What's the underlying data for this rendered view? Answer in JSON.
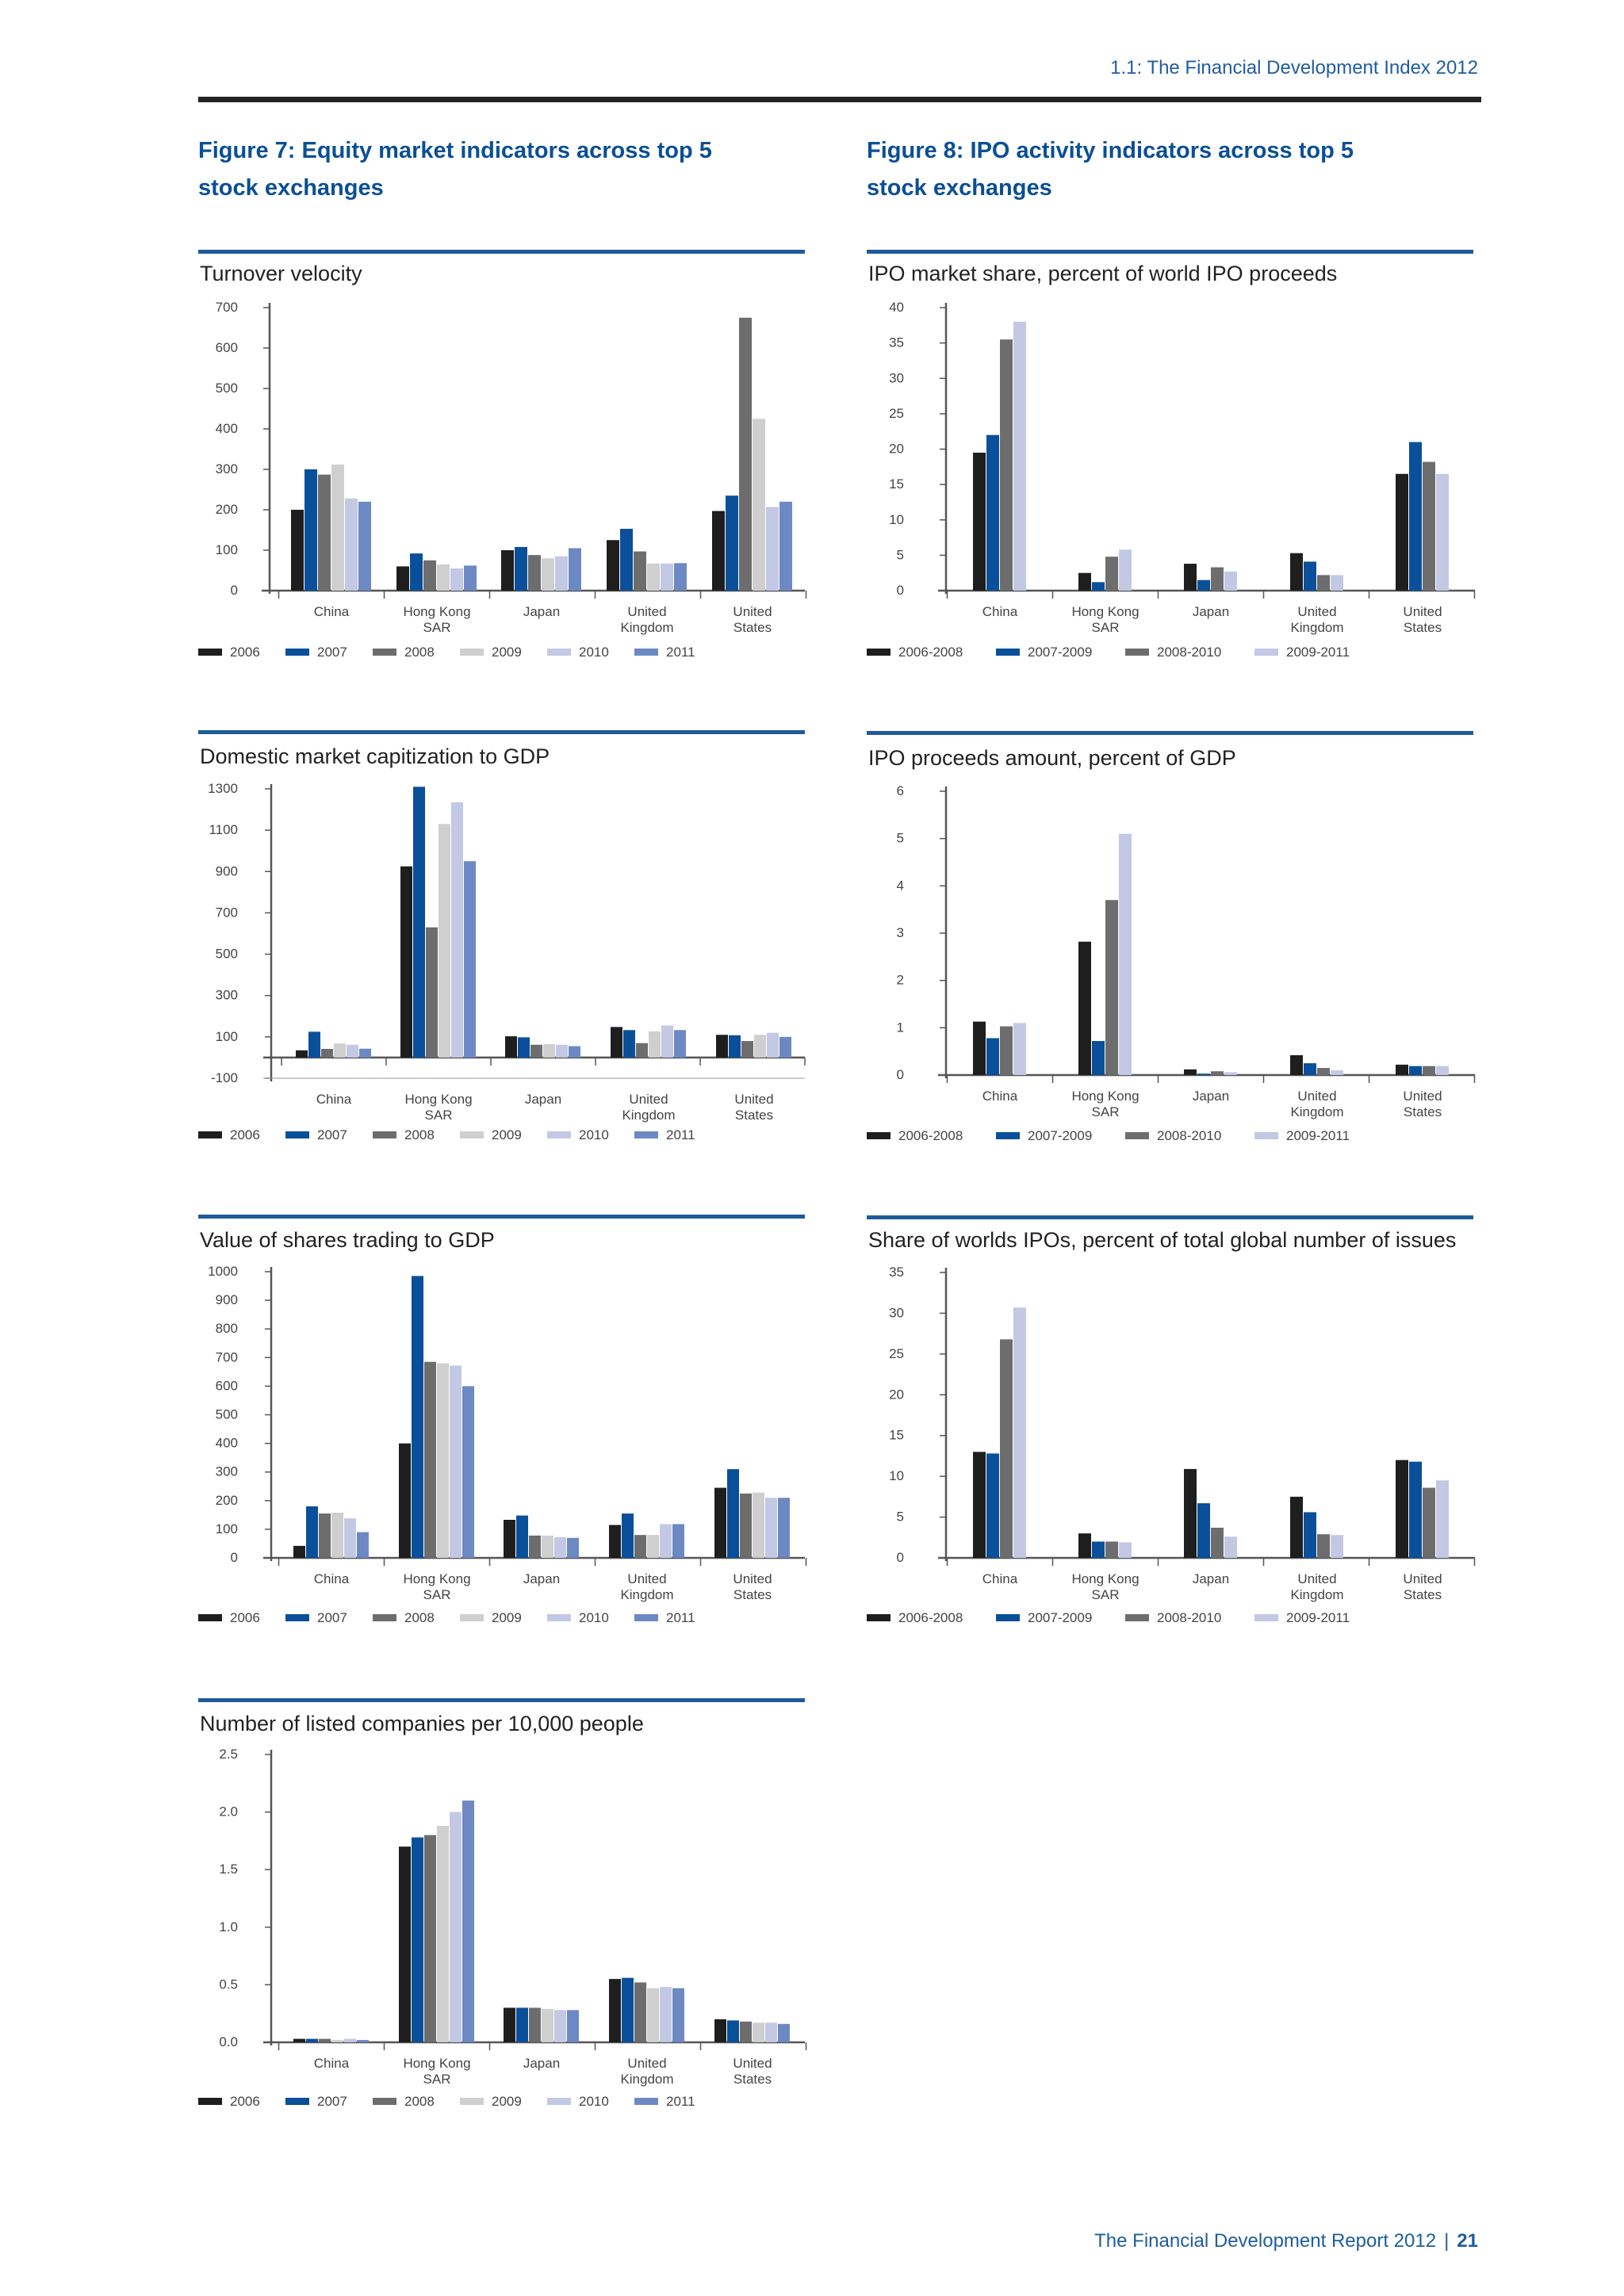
{
  "page": {
    "header": "1.1: The Financial Development Index 2012",
    "footer_report": "The Financial Development Report 2012",
    "footer_sep": "|",
    "page_number": "21"
  },
  "figures": {
    "fig7": {
      "line1": "Figure 7: Equity market indicators across top 5",
      "line2": "stock exchanges"
    },
    "fig8": {
      "line1": "Figure 8: IPO activity indicators across top 5",
      "line2": "stock exchanges"
    }
  },
  "colors": {
    "yearly": [
      "#1e1e1e",
      "#0a4f9a",
      "#6d6d6d",
      "#cfcfcf",
      "#c3c8e4",
      "#6d89c3"
    ],
    "period": [
      "#1e1e1e",
      "#0a4f9a",
      "#6d6d6d",
      "#c3c8e4"
    ],
    "blue_rule": "#1f5a9a",
    "axis": "#555555"
  },
  "chart_data": [
    {
      "id": "turnover",
      "type": "bar",
      "title": "Turnover velocity",
      "categories": [
        [
          "China"
        ],
        [
          "Hong Kong",
          "SAR"
        ],
        [
          "Japan"
        ],
        [
          "United",
          "Kingdom"
        ],
        [
          "United",
          "States"
        ]
      ],
      "yticks": [
        "0",
        "100",
        "200",
        "300",
        "400",
        "500",
        "600",
        "700"
      ],
      "ylim": [
        0,
        700
      ],
      "series": [
        {
          "name": "2006",
          "values": [
            200,
            60,
            100,
            125,
            197
          ]
        },
        {
          "name": "2007",
          "values": [
            300,
            92,
            108,
            153,
            235
          ]
        },
        {
          "name": "2008",
          "values": [
            287,
            75,
            88,
            97,
            675
          ]
        },
        {
          "name": "2009",
          "values": [
            312,
            65,
            80,
            67,
            425
          ]
        },
        {
          "name": "2010",
          "values": [
            228,
            55,
            85,
            67,
            207
          ]
        },
        {
          "name": "2011",
          "values": [
            220,
            62,
            105,
            68,
            220
          ]
        }
      ]
    },
    {
      "id": "ipo_share",
      "type": "bar",
      "title": "IPO market share, percent of world IPO proceeds",
      "categories": [
        [
          "China"
        ],
        [
          "Hong Kong",
          "SAR"
        ],
        [
          "Japan"
        ],
        [
          "United",
          "Kingdom"
        ],
        [
          "United",
          "States"
        ]
      ],
      "yticks": [
        "0",
        "5",
        "10",
        "15",
        "20",
        "25",
        "30",
        "35",
        "40"
      ],
      "ylim": [
        0,
        40
      ],
      "series": [
        {
          "name": "2006-2008",
          "values": [
            19.5,
            2.5,
            3.8,
            5.3,
            16.5
          ]
        },
        {
          "name": "2007-2009",
          "values": [
            22,
            1.2,
            1.5,
            4.1,
            21
          ]
        },
        {
          "name": "2008-2010",
          "values": [
            35.5,
            4.8,
            3.3,
            2.2,
            18.2
          ]
        },
        {
          "name": "2009-2011",
          "values": [
            38,
            5.8,
            2.7,
            2.2,
            16.5
          ]
        }
      ]
    },
    {
      "id": "mktcap",
      "type": "bar",
      "title": "Domestic market capitization to GDP",
      "categories": [
        [
          "China"
        ],
        [
          "Hong Kong",
          "SAR"
        ],
        [
          "Japan"
        ],
        [
          "United",
          "Kingdom"
        ],
        [
          "United",
          "States"
        ]
      ],
      "yticks": [
        "-100",
        "100",
        "300",
        "500",
        "700",
        "900",
        "1100",
        "1300"
      ],
      "ylim": [
        -100,
        1300
      ],
      "series": [
        {
          "name": "2006",
          "values": [
            35,
            925,
            103,
            148,
            110
          ]
        },
        {
          "name": "2007",
          "values": [
            125,
            1310,
            98,
            133,
            108
          ]
        },
        {
          "name": "2008",
          "values": [
            42,
            630,
            62,
            70,
            80
          ]
        },
        {
          "name": "2009",
          "values": [
            68,
            1130,
            65,
            127,
            110
          ]
        },
        {
          "name": "2010",
          "values": [
            62,
            1235,
            62,
            155,
            120
          ]
        },
        {
          "name": "2011",
          "values": [
            43,
            950,
            55,
            133,
            100
          ]
        }
      ]
    },
    {
      "id": "ipo_gdp",
      "type": "bar",
      "title": "IPO proceeds amount, percent of GDP",
      "categories": [
        [
          "China"
        ],
        [
          "Hong Kong",
          "SAR"
        ],
        [
          "Japan"
        ],
        [
          "United",
          "Kingdom"
        ],
        [
          "United",
          "States"
        ]
      ],
      "yticks": [
        "0",
        "1",
        "2",
        "3",
        "4",
        "5",
        "6"
      ],
      "ylim": [
        0,
        6
      ],
      "series": [
        {
          "name": "2006-2008",
          "values": [
            1.13,
            2.82,
            0.12,
            0.42,
            0.22
          ]
        },
        {
          "name": "2007-2009",
          "values": [
            0.78,
            0.72,
            0.03,
            0.25,
            0.19
          ]
        },
        {
          "name": "2008-2010",
          "values": [
            1.03,
            3.7,
            0.08,
            0.15,
            0.19
          ]
        },
        {
          "name": "2009-2011",
          "values": [
            1.1,
            5.1,
            0.06,
            0.1,
            0.19
          ]
        }
      ]
    },
    {
      "id": "trading",
      "type": "bar",
      "title": "Value of shares trading to GDP",
      "categories": [
        [
          "China"
        ],
        [
          "Hong Kong",
          "SAR"
        ],
        [
          "Japan"
        ],
        [
          "United",
          "Kingdom"
        ],
        [
          "United",
          "States"
        ]
      ],
      "yticks": [
        "0",
        "100",
        "200",
        "300",
        "400",
        "500",
        "600",
        "700",
        "800",
        "900",
        "1000"
      ],
      "ylim": [
        0,
        1000
      ],
      "series": [
        {
          "name": "2006",
          "values": [
            42,
            400,
            133,
            115,
            245
          ]
        },
        {
          "name": "2007",
          "values": [
            180,
            985,
            148,
            155,
            310
          ]
        },
        {
          "name": "2008",
          "values": [
            155,
            685,
            78,
            80,
            225
          ]
        },
        {
          "name": "2009",
          "values": [
            158,
            680,
            78,
            80,
            228
          ]
        },
        {
          "name": "2010",
          "values": [
            138,
            672,
            72,
            118,
            210
          ]
        },
        {
          "name": "2011",
          "values": [
            90,
            600,
            70,
            118,
            210
          ]
        }
      ]
    },
    {
      "id": "ipo_count",
      "type": "bar",
      "title": "Share of worlds IPOs, percent of total global number of issues",
      "categories": [
        [
          "China"
        ],
        [
          "Hong Kong",
          "SAR"
        ],
        [
          "Japan"
        ],
        [
          "United",
          "Kingdom"
        ],
        [
          "United",
          "States"
        ]
      ],
      "yticks": [
        "0",
        "5",
        "10",
        "15",
        "20",
        "25",
        "30",
        "35"
      ],
      "ylim": [
        0,
        35
      ],
      "series": [
        {
          "name": "2006-2008",
          "values": [
            13,
            3,
            10.9,
            7.5,
            12
          ]
        },
        {
          "name": "2007-2009",
          "values": [
            12.8,
            2,
            6.7,
            5.6,
            11.8
          ]
        },
        {
          "name": "2008-2010",
          "values": [
            26.8,
            2,
            3.7,
            2.9,
            8.6
          ]
        },
        {
          "name": "2009-2011",
          "values": [
            30.7,
            1.9,
            2.6,
            2.8,
            9.5
          ]
        }
      ]
    },
    {
      "id": "listed",
      "type": "bar",
      "title": "Number of listed companies per 10,000 people",
      "categories": [
        [
          "China"
        ],
        [
          "Hong Kong",
          "SAR"
        ],
        [
          "Japan"
        ],
        [
          "United",
          "Kingdom"
        ],
        [
          "United",
          "States"
        ]
      ],
      "yticks": [
        "0.0",
        "0.5",
        "1.0",
        "1.5",
        "2.0",
        "2.5"
      ],
      "ylim": [
        0,
        2.5
      ],
      "series": [
        {
          "name": "2006",
          "values": [
            0.03,
            1.7,
            0.3,
            0.55,
            0.2
          ]
        },
        {
          "name": "2007",
          "values": [
            0.03,
            1.78,
            0.3,
            0.56,
            0.19
          ]
        },
        {
          "name": "2008",
          "values": [
            0.03,
            1.8,
            0.3,
            0.52,
            0.18
          ]
        },
        {
          "name": "2009",
          "values": [
            0.02,
            1.88,
            0.29,
            0.47,
            0.17
          ]
        },
        {
          "name": "2010",
          "values": [
            0.03,
            2.0,
            0.28,
            0.48,
            0.17
          ]
        },
        {
          "name": "2011",
          "values": [
            0.02,
            2.1,
            0.28,
            0.47,
            0.16
          ]
        }
      ]
    }
  ]
}
